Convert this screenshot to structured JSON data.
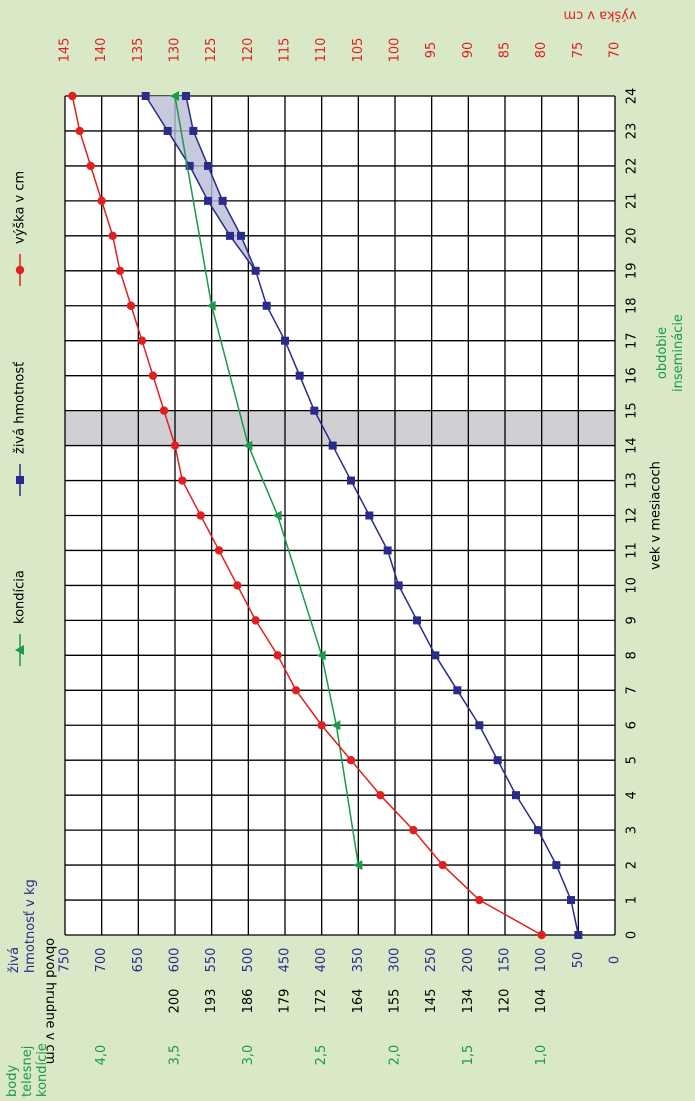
{
  "chart_data": {
    "type": "line",
    "x_label": "vek v mesiacoch",
    "y_label": "živá hmotnosť v kg",
    "x": [
      0,
      1,
      2,
      3,
      4,
      5,
      6,
      7,
      8,
      9,
      10,
      11,
      12,
      13,
      14,
      15,
      16,
      17,
      18,
      19,
      20,
      21,
      22,
      23,
      24
    ],
    "xlim": [
      0,
      24
    ],
    "xticks": [
      0,
      1,
      2,
      3,
      4,
      5,
      6,
      7,
      8,
      9,
      10,
      11,
      12,
      13,
      14,
      15,
      16,
      17,
      18,
      19,
      20,
      21,
      22,
      23,
      24
    ],
    "ylim": [
      0,
      750
    ],
    "yticks": [
      0,
      50,
      100,
      150,
      200,
      250,
      300,
      350,
      400,
      450,
      500,
      550,
      600,
      650,
      700,
      750
    ],
    "y2_label": "body telesnej kondície",
    "y2lim": [
      0.5,
      4.25
    ],
    "y2ticks": [
      {
        "value": 1,
        "label": "1,0"
      },
      {
        "value": 1.5,
        "label": "1,5"
      },
      {
        "value": 2,
        "label": "2,0"
      },
      {
        "value": 2.5,
        "label": "2,5"
      },
      {
        "value": 3,
        "label": "3,0"
      },
      {
        "value": 3.5,
        "label": "3,5"
      },
      {
        "value": 4,
        "label": "4,0"
      }
    ],
    "y3_label": "výška v cm",
    "y3lim": [
      70,
      145
    ],
    "y3ticks": [
      70,
      75,
      80,
      85,
      90,
      95,
      100,
      105,
      110,
      115,
      120,
      125,
      130,
      135,
      140,
      145
    ],
    "chest_label": "obvod hrudne v cm",
    "chest_ticks": [
      null,
      null,
      104,
      120,
      134,
      145,
      155,
      164,
      172,
      179,
      186,
      193,
      200,
      null,
      null,
      null
    ],
    "grid": true,
    "insemination": {
      "label": "obdobie inseminácie",
      "from": 14,
      "to": 15
    },
    "series": [
      {
        "name": "kondícia",
        "color": "#1a9a4a",
        "marker": "triangle",
        "axis": "y2",
        "x": [
          2,
          6,
          8,
          12,
          14,
          18,
          24
        ],
        "values": [
          2.25,
          2.4,
          2.5,
          2.8,
          3.0,
          3.25,
          3.5
        ]
      },
      {
        "name": "živá hmotnosť",
        "color": "#2b2b8c",
        "marker": "square",
        "values": [
          50,
          60,
          80,
          105,
          135,
          160,
          185,
          215,
          245,
          270,
          295,
          310,
          335,
          360,
          385,
          410,
          430,
          450,
          475,
          490,
          510,
          535,
          555,
          575,
          585
        ],
        "values_max": [
          null,
          null,
          null,
          null,
          null,
          null,
          null,
          null,
          null,
          null,
          null,
          null,
          null,
          null,
          null,
          null,
          null,
          null,
          null,
          null,
          525,
          555,
          580,
          610,
          640
        ]
      },
      {
        "name": "výška v cm",
        "color": "#e02020",
        "marker": "circle",
        "axis": "y3",
        "values": [
          80,
          88.5,
          93.5,
          97.5,
          102,
          106,
          110,
          113.5,
          116,
          119,
          121.5,
          124,
          126.5,
          129,
          130,
          131.5,
          133,
          134.5,
          136,
          137.5,
          138.5,
          140,
          141.5,
          143,
          144
        ]
      }
    ]
  }
}
